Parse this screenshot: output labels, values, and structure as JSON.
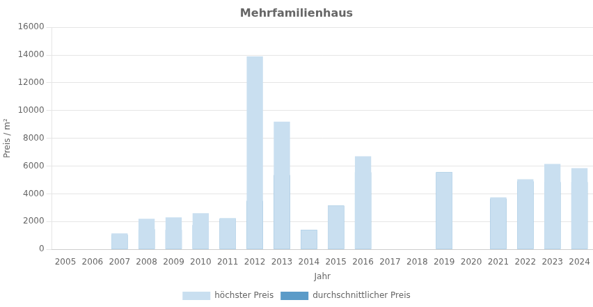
{
  "chart_data": {
    "type": "bar",
    "title": "Mehrfamilienhaus",
    "xlabel": "Jahr",
    "ylabel": "Preis / m²",
    "categories": [
      "2005",
      "2006",
      "2007",
      "2008",
      "2009",
      "2010",
      "2011",
      "2012",
      "2013",
      "2014",
      "2015",
      "2016",
      "2017",
      "2018",
      "2019",
      "2020",
      "2021",
      "2022",
      "2023",
      "2024"
    ],
    "series": [
      {
        "name": "höchster Preis",
        "color": "#c9dff0",
        "values": [
          0,
          0,
          1150,
          2200,
          2300,
          2600,
          2250,
          13900,
          9200,
          1400,
          3150,
          6700,
          0,
          0,
          5550,
          0,
          3750,
          5050,
          6150,
          5850
        ]
      },
      {
        "name": "durchschnittlicher Preis",
        "color": "#5b9bc8",
        "values": [
          0,
          0,
          1050,
          1450,
          1400,
          1750,
          2200,
          3500,
          5350,
          1400,
          3150,
          5550,
          0,
          0,
          5550,
          0,
          3650,
          4900,
          4850,
          4850
        ]
      }
    ],
    "ylim": [
      0,
      16000
    ],
    "yticks": [
      0,
      2000,
      4000,
      6000,
      8000,
      10000,
      12000,
      14000,
      16000
    ],
    "grid": true,
    "legend": "bottom"
  }
}
